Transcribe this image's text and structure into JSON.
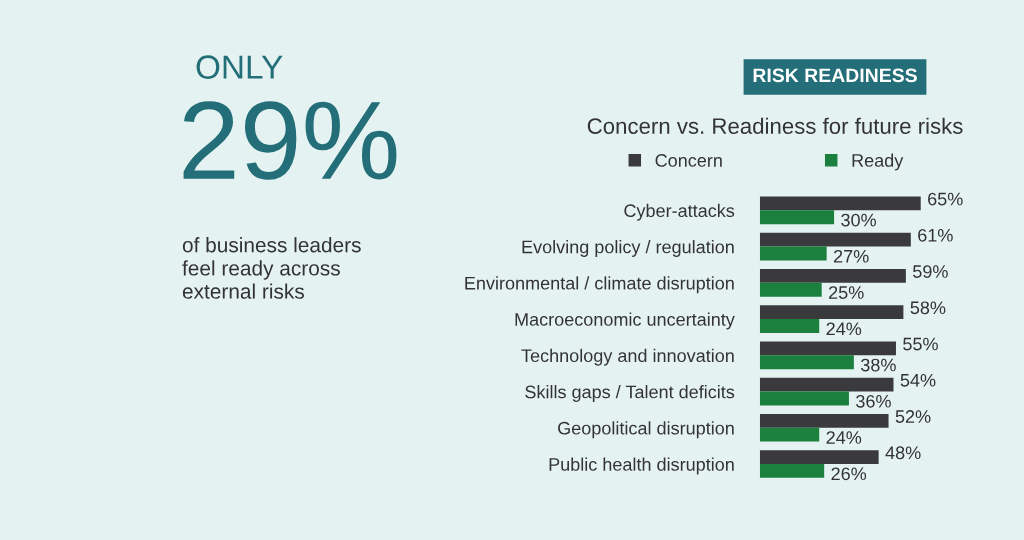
{
  "chart_data": {
    "type": "bar",
    "orientation": "horizontal",
    "title": "Concern vs. Readiness for future risks",
    "categories": [
      "Cyber-attacks",
      "Evolving policy / regulation",
      "Environmental / climate disruption",
      "Macroeconomic uncertainty",
      "Technology and innovation",
      "Skills gaps / Talent deficits",
      "Geopolitical disruption",
      "Public health disruption"
    ],
    "series": [
      {
        "name": "Concern",
        "color": "#3a3a3c",
        "values": [
          65,
          61,
          59,
          58,
          55,
          54,
          52,
          48
        ],
        "value_labels": [
          "65%",
          "61%",
          "59%",
          "58%",
          "55%",
          "54%",
          "52%",
          "48%"
        ]
      },
      {
        "name": "Ready",
        "color": "#1b7f3e",
        "values": [
          30,
          27,
          25,
          24,
          38,
          36,
          24,
          26
        ],
        "value_labels": [
          "30%",
          "27%",
          "25%",
          "24%",
          "38%",
          "36%",
          "24%",
          "26%"
        ]
      }
    ],
    "legend": "top",
    "grid": false,
    "tick_labels": "y",
    "annotations": [
      "RISK READINESS",
      "ONLY",
      "29%",
      "of business leaders\nfeel ready across\nexternal risks"
    ]
  }
}
